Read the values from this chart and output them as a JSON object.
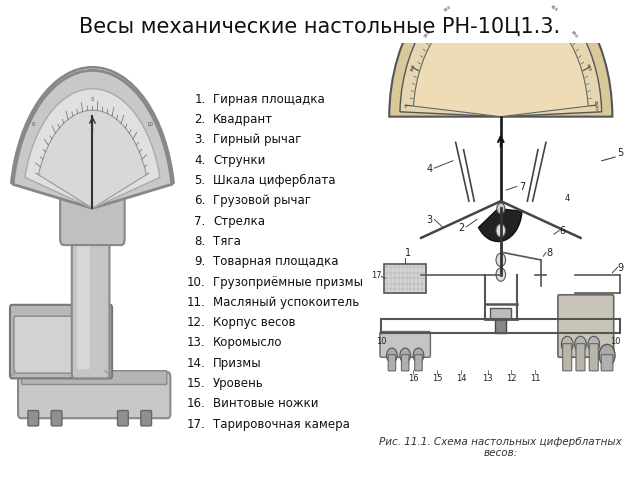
{
  "title": "Весы механические настольные РН-10Ц1.3.",
  "title_fontsize": 15,
  "bg_color": "#ffffff",
  "list_items": [
    "Гирная площадка",
    "Квадрант",
    "Гирный рычаг",
    "Струнки",
    "Шкала циферблата",
    "Грузовой рычаг",
    "Стрелка",
    "Тяга",
    "Товарная площадка",
    "Грузоприёмные призмы",
    "Масляный успокоитель",
    "Корпус весов",
    "Коромысло",
    "Призмы",
    "Уровень",
    "Винтовые ножки",
    "Тарировочная камера"
  ],
  "list_numbers": [
    1,
    2,
    3,
    4,
    5,
    6,
    7,
    8,
    9,
    10,
    11,
    12,
    13,
    14,
    15,
    16,
    17
  ],
  "list_fontsize": 8.5,
  "diagram_bg": "#ddd0a8",
  "caption": "Рис. 11.1. Схема настольных циферблатных\nвесов:",
  "caption_fontsize": 7.5
}
